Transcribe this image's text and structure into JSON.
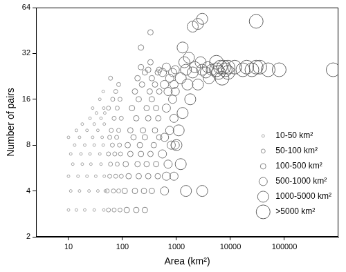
{
  "chart_data": {
    "type": "scatter",
    "x_label": "Area (km²)",
    "y_label": "Number of pairs",
    "log": true,
    "grid": false,
    "legend": "right",
    "marker": "circle",
    "xlim": [
      2.5,
      1000000
    ],
    "xticks": [
      10,
      100,
      1000,
      10000,
      100000
    ],
    "ylim": [
      2,
      64
    ],
    "yticks": [
      2,
      4,
      8,
      16,
      32,
      64
    ],
    "series": [
      {
        "name": "10-50 km²",
        "color": "#a6a6a6",
        "x": [
          10,
          14,
          20,
          30,
          45,
          11,
          16,
          24,
          35,
          48,
          10,
          15,
          22,
          32,
          46,
          12,
          18,
          26,
          40,
          11,
          17,
          25,
          38,
          13,
          20,
          30,
          44,
          10,
          16,
          28,
          42,
          14,
          22,
          35,
          18,
          30,
          46,
          25,
          40,
          33,
          47,
          28,
          45,
          38,
          44
        ],
        "values": [
          3,
          3,
          3,
          3,
          3,
          4,
          4,
          4,
          4,
          4,
          5,
          5,
          5,
          5,
          5,
          6,
          6,
          6,
          6,
          7,
          7,
          7,
          7,
          8,
          8,
          8,
          8,
          9,
          9,
          9,
          9,
          10,
          10,
          10,
          11,
          11,
          11,
          12,
          12,
          13,
          13,
          14,
          14,
          16,
          18
        ]
      },
      {
        "name": "50-100 km²",
        "color": "#959595",
        "x": [
          55,
          70,
          90,
          52,
          68,
          85,
          58,
          75,
          95,
          60,
          80,
          55,
          72,
          92,
          65,
          88,
          58,
          78,
          62,
          85,
          70,
          95,
          55,
          80,
          66,
          90,
          75,
          85,
          60
        ],
        "values": [
          3,
          3,
          3,
          4,
          4,
          4,
          5,
          5,
          5,
          6,
          6,
          7,
          7,
          7,
          8,
          8,
          9,
          9,
          10,
          10,
          12,
          12,
          14,
          14,
          16,
          16,
          18,
          20,
          22
        ]
      },
      {
        "name": "100-500 km²",
        "color": "#858585",
        "x": [
          120,
          180,
          260,
          110,
          170,
          250,
          350,
          130,
          200,
          300,
          450,
          115,
          190,
          280,
          420,
          140,
          220,
          330,
          125,
          210,
          380,
          160,
          260,
          480,
          140,
          240,
          400,
          180,
          300,
          460,
          150,
          280,
          420,
          200,
          350,
          170,
          320,
          480,
          230,
          400,
          190,
          350,
          260,
          450,
          300,
          480,
          220,
          330,
          220,
          330
        ],
        "values": [
          3,
          3,
          3,
          4,
          4,
          4,
          4,
          5,
          5,
          5,
          5,
          6,
          6,
          6,
          6,
          7,
          7,
          7,
          8,
          8,
          8,
          9,
          9,
          9,
          10,
          10,
          10,
          12,
          12,
          12,
          14,
          14,
          14,
          16,
          16,
          18,
          18,
          18,
          20,
          20,
          22,
          22,
          24,
          24,
          25,
          25,
          26,
          28,
          35,
          44
        ]
      },
      {
        "name": "500-1000 km²",
        "color": "#777777",
        "x": [
          600,
          650,
          900,
          700,
          550,
          800,
          950,
          600,
          750,
          900,
          650,
          850,
          700,
          950,
          600,
          900,
          750,
          550,
          850,
          950,
          650
        ],
        "values": [
          4,
          5,
          5,
          6,
          7,
          8,
          8,
          9,
          10,
          12,
          14,
          16,
          18,
          18,
          20,
          20,
          22,
          24,
          24,
          25,
          26
        ]
      },
      {
        "name": "1000-5000 km²",
        "color": "#6a6a6a",
        "x": [
          1500,
          3000,
          1200,
          1000,
          1100,
          1300,
          1800,
          1600,
          2500,
          1200,
          4000,
          2000,
          3500,
          1500,
          3000,
          4500,
          2200,
          3800,
          1400,
          2800,
          1700,
          1300,
          2000,
          2500,
          3000
        ],
        "values": [
          4,
          4,
          6,
          8,
          10,
          13,
          16,
          20,
          20,
          22,
          22,
          24,
          24,
          25,
          25,
          25,
          26,
          26,
          28,
          28,
          30,
          35,
          48,
          50,
          54
        ]
      },
      {
        "name": ">5000 km²",
        "color": "#606060",
        "x": [
          7000,
          6000,
          9000,
          5500,
          8000,
          6500,
          7500,
          20000,
          30000,
          35000,
          17000,
          25000,
          50000,
          80000,
          800000,
          9000,
          12000,
          5500,
          30000
        ],
        "values": [
          22,
          24,
          24,
          25,
          25,
          26,
          26,
          26,
          26,
          26,
          25,
          25,
          25,
          25,
          25,
          26,
          26,
          28,
          52
        ]
      }
    ]
  }
}
